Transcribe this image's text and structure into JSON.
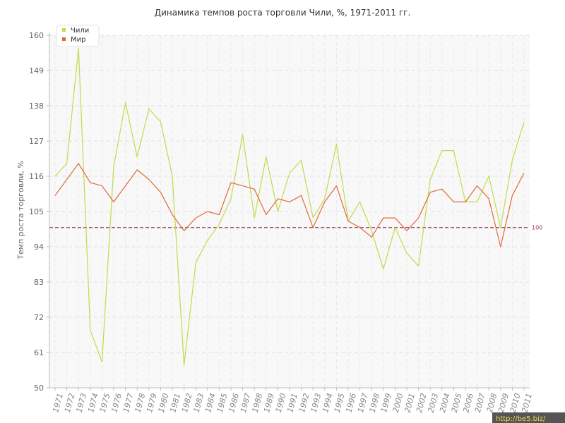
{
  "chart_data": {
    "type": "line",
    "title": "Динамика темпов роста торговли Чили, %, 1971-2011 гг.",
    "ylabel": "Темп роста торговли, %",
    "xlabel": "",
    "ylim": [
      50,
      160
    ],
    "yticks": [
      50,
      61,
      72,
      83,
      94,
      105,
      116,
      127,
      138,
      149,
      160
    ],
    "categories": [
      "1971",
      "1972",
      "1973",
      "1974",
      "1975",
      "1976",
      "1977",
      "1978",
      "1979",
      "1980",
      "1981",
      "1982",
      "1983",
      "1984",
      "1985",
      "1986",
      "1987",
      "1988",
      "1989",
      "1990",
      "1991",
      "1992",
      "1993",
      "1994",
      "1995",
      "1996",
      "1997",
      "1998",
      "1999",
      "2000",
      "2001",
      "2002",
      "2003",
      "2004",
      "2005",
      "2006",
      "2007",
      "2008",
      "2009",
      "2010",
      "2011"
    ],
    "series": [
      {
        "name": "Чили",
        "color": "#bfdc4a",
        "values": [
          116,
          120,
          156,
          68,
          58,
          119,
          139,
          122,
          137,
          133,
          116,
          57,
          89,
          96,
          101,
          109,
          129,
          103,
          122,
          105,
          117,
          121,
          103,
          109,
          126,
          102,
          108,
          99,
          87,
          100,
          92,
          88,
          115,
          124,
          124,
          108,
          108,
          116,
          100,
          121,
          133
        ]
      },
      {
        "name": "Мир",
        "color": "#e0693c",
        "values": [
          110,
          115,
          120,
          114,
          113,
          108,
          113,
          118,
          115,
          111,
          104,
          99,
          103,
          105,
          104,
          114,
          113,
          112,
          104,
          109,
          108,
          110,
          100,
          108,
          113,
          102,
          100,
          97,
          103,
          103,
          99,
          103,
          111,
          112,
          108,
          108,
          113,
          109,
          94,
          110,
          117
        ]
      }
    ],
    "reference_line": {
      "value": 100,
      "label": "100",
      "color": "#9a3a55"
    },
    "grid": true,
    "legend": "top-left"
  },
  "watermark": "http://be5.biz/"
}
